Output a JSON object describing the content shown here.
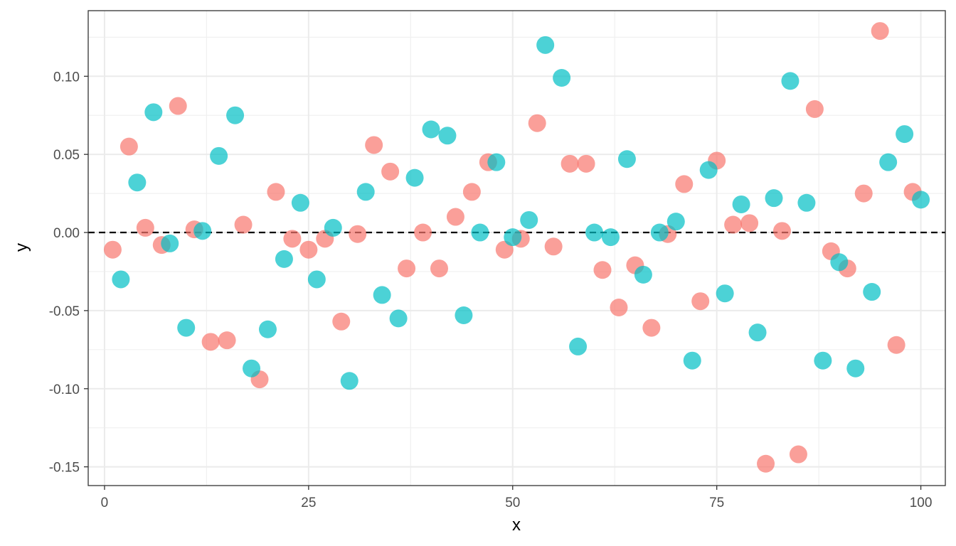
{
  "chart_data": {
    "type": "scatter",
    "xlabel": "x",
    "ylabel": "y",
    "xlim": [
      -2,
      103
    ],
    "ylim": [
      -0.162,
      0.142
    ],
    "x_ticks": [
      0,
      25,
      50,
      75,
      100
    ],
    "x_tick_labels": [
      "0",
      "25",
      "50",
      "75",
      "100"
    ],
    "y_ticks": [
      -0.15,
      -0.1,
      -0.05,
      0.0,
      0.05,
      0.1
    ],
    "y_tick_labels": [
      "-0.15",
      "-0.10",
      "-0.05",
      "0.00",
      "0.05",
      "0.10"
    ],
    "reference_line": {
      "y": 0,
      "style": "dashed",
      "color": "#000000"
    },
    "grid": true,
    "legend": "none",
    "series": [
      {
        "color": "#F8766D",
        "x": [
          1,
          3,
          5,
          7,
          9,
          11,
          13,
          15,
          17,
          19,
          21,
          23,
          25,
          27,
          29,
          31,
          33,
          35,
          37,
          39,
          41,
          43,
          45,
          47,
          49,
          51,
          53,
          55,
          57,
          59,
          61,
          63,
          65,
          67,
          69,
          71,
          73,
          75,
          77,
          79,
          81,
          83,
          85,
          87,
          89,
          91,
          93,
          95,
          97,
          99
        ],
        "y": [
          -0.011,
          0.055,
          0.003,
          -0.008,
          0.081,
          0.002,
          -0.07,
          -0.069,
          0.005,
          -0.094,
          0.026,
          -0.004,
          -0.011,
          -0.004,
          -0.057,
          -0.001,
          0.056,
          0.039,
          -0.023,
          0.0,
          -0.023,
          0.01,
          0.026,
          0.045,
          -0.011,
          -0.004,
          0.07,
          -0.009,
          0.044,
          0.044,
          -0.024,
          -0.048,
          -0.021,
          -0.061,
          -0.001,
          0.031,
          -0.044,
          0.046,
          0.005,
          0.006,
          -0.148,
          0.001,
          -0.142,
          0.079,
          -0.012,
          -0.023,
          0.025,
          0.129,
          -0.072,
          0.026
        ]
      },
      {
        "color": "#00BFC4",
        "x": [
          2,
          4,
          6,
          8,
          10,
          12,
          14,
          16,
          18,
          20,
          22,
          24,
          26,
          28,
          30,
          32,
          34,
          36,
          38,
          40,
          42,
          44,
          46,
          48,
          50,
          52,
          54,
          56,
          58,
          60,
          62,
          64,
          66,
          68,
          70,
          72,
          74,
          76,
          78,
          80,
          82,
          84,
          86,
          88,
          90,
          92,
          94,
          96,
          98,
          100
        ],
        "y": [
          -0.03,
          0.032,
          0.077,
          -0.007,
          -0.061,
          0.001,
          0.049,
          0.075,
          -0.087,
          -0.062,
          -0.017,
          0.019,
          -0.03,
          0.003,
          -0.095,
          0.026,
          -0.04,
          -0.055,
          0.035,
          0.066,
          0.062,
          -0.053,
          0.0,
          0.045,
          -0.003,
          0.008,
          0.12,
          0.099,
          -0.073,
          0.0,
          -0.003,
          0.047,
          -0.027,
          0.0,
          0.007,
          -0.082,
          0.04,
          -0.039,
          0.018,
          -0.064,
          0.022,
          0.097,
          0.019,
          -0.082,
          -0.019,
          -0.087,
          -0.038,
          0.045,
          0.063,
          0.021
        ]
      }
    ]
  }
}
